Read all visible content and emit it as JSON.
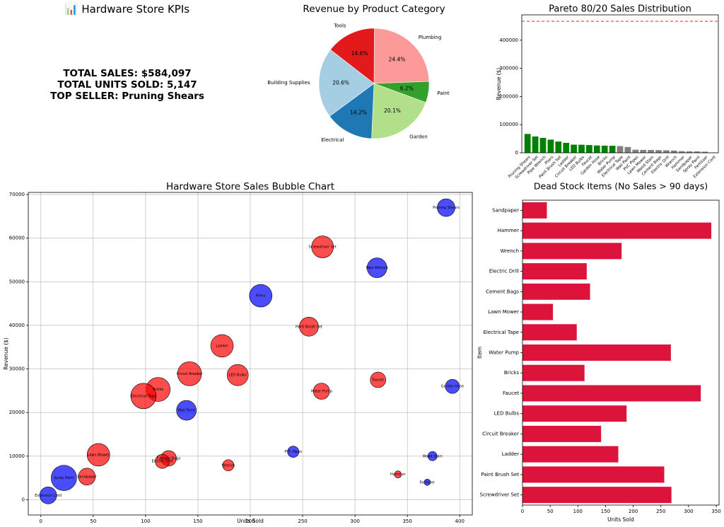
{
  "kpi": {
    "title": "📊 Hardware Store KPIs",
    "total_sales": "TOTAL SALES: $584,097",
    "total_units": "TOTAL UNITS SOLD: 5,147",
    "top_seller": "TOP SELLER: Pruning Shears"
  },
  "chart_data": [
    {
      "id": "pie",
      "type": "pie",
      "title": "Revenue by Product Category",
      "slices": [
        {
          "label": "Plumbing",
          "pct": 24.4,
          "color": "#fb9a99"
        },
        {
          "label": "Paint",
          "pct": 6.2,
          "color": "#33a02c"
        },
        {
          "label": "Garden",
          "pct": 20.1,
          "color": "#b2df8a"
        },
        {
          "label": "Electrical",
          "pct": 14.2,
          "color": "#1f78b4"
        },
        {
          "label": "Building Supplies",
          "pct": 20.6,
          "color": "#a6cee3"
        },
        {
          "label": "Tools",
          "pct": 14.6,
          "color": "#e31a1c"
        }
      ]
    },
    {
      "id": "pareto",
      "type": "bar",
      "title": "Pareto 80/20 Sales Distribution",
      "ylabel": "Revenue ($)",
      "ylim": [
        0,
        490000
      ],
      "yticks": [
        0,
        100000,
        200000,
        300000,
        400000
      ],
      "threshold": 467278,
      "categories": [
        "Pruning Shears",
        "Screwdriver Set",
        "Pipe Wrench",
        "Pliers",
        "Paint Brush Set",
        "Ladder",
        "Circuit Breaker",
        "LED Bulbs",
        "Faucet",
        "Garden Hose",
        "Bricks",
        "Water Pump",
        "Electrical Tape",
        "Wall Paint",
        "PVC Pipes",
        "Lawn Mower",
        "Wood Stain",
        "Cement Bags",
        "Electric Drill",
        "Wrench",
        "Hammer",
        "Sandpaper",
        "Spray Paint",
        "Fertilizer",
        "Extension Cord"
      ],
      "values": [
        67000,
        58000,
        53000,
        46800,
        40000,
        35300,
        28900,
        28600,
        27500,
        26000,
        25400,
        25000,
        23800,
        20500,
        11000,
        10300,
        10000,
        9500,
        8800,
        7900,
        5800,
        5300,
        5000,
        4000,
        1000
      ],
      "colors": [
        "#008000",
        "#008000",
        "#008000",
        "#008000",
        "#008000",
        "#008000",
        "#008000",
        "#008000",
        "#008000",
        "#008000",
        "#008000",
        "#008000",
        "#808080",
        "#808080",
        "#808080",
        "#808080",
        "#808080",
        "#808080",
        "#808080",
        "#808080",
        "#808080",
        "#808080",
        "#808080",
        "#808080",
        "#808080"
      ]
    },
    {
      "id": "bubble",
      "type": "scatter",
      "title": "Hardware Store Sales Bubble Chart",
      "xlabel": "Units Sold",
      "ylabel": "Revenue ($)",
      "xlim": [
        -12,
        412
      ],
      "ylim": [
        -3500,
        70500
      ],
      "xticks": [
        0,
        50,
        100,
        150,
        200,
        250,
        300,
        350,
        400
      ],
      "yticks": [
        0,
        10000,
        20000,
        30000,
        40000,
        50000,
        60000,
        70000
      ],
      "points": [
        {
          "label": "Pruning Shears",
          "x": 387,
          "y": 67000,
          "size": 12.5,
          "color": "blue"
        },
        {
          "label": "Screwdriver Set",
          "x": 269,
          "y": 58000,
          "size": 15.5,
          "color": "red"
        },
        {
          "label": "Pipe Wrench",
          "x": 321,
          "y": 53200,
          "size": 14,
          "color": "blue"
        },
        {
          "label": "Pliers",
          "x": 210,
          "y": 46800,
          "size": 16,
          "color": "blue"
        },
        {
          "label": "Paint Brush Set",
          "x": 256,
          "y": 39700,
          "size": 13.5,
          "color": "red"
        },
        {
          "label": "Ladder",
          "x": 173,
          "y": 35300,
          "size": 16,
          "color": "red"
        },
        {
          "label": "Circuit Breaker",
          "x": 142,
          "y": 28900,
          "size": 17,
          "color": "red"
        },
        {
          "label": "LED Bulbs",
          "x": 188,
          "y": 28600,
          "size": 15,
          "color": "red"
        },
        {
          "label": "Faucet",
          "x": 322,
          "y": 27500,
          "size": 11,
          "color": "red"
        },
        {
          "label": "Garden Hose",
          "x": 393,
          "y": 26000,
          "size": 10,
          "color": "blue"
        },
        {
          "label": "Bricks",
          "x": 112,
          "y": 25300,
          "size": 17,
          "color": "red"
        },
        {
          "label": "Water Pump",
          "x": 268,
          "y": 24900,
          "size": 11.5,
          "color": "red"
        },
        {
          "label": "Electrical Tape",
          "x": 98,
          "y": 23800,
          "size": 18,
          "color": "red"
        },
        {
          "label": "Wall Paint",
          "x": 139,
          "y": 20500,
          "size": 14,
          "color": "blue"
        },
        {
          "label": "PVC Pipes",
          "x": 241,
          "y": 11000,
          "size": 8,
          "color": "blue"
        },
        {
          "label": "Lawn Mower",
          "x": 55,
          "y": 10300,
          "size": 16,
          "color": "red"
        },
        {
          "label": "Wood Stain",
          "x": 374,
          "y": 10000,
          "size": 6.5,
          "color": "blue"
        },
        {
          "label": "Cement Bags",
          "x": 122,
          "y": 9500,
          "size": 11,
          "color": "red"
        },
        {
          "label": "Electric Drill",
          "x": 116,
          "y": 8800,
          "size": 10,
          "color": "red"
        },
        {
          "label": "Wrench",
          "x": 179,
          "y": 7900,
          "size": 8,
          "color": "red"
        },
        {
          "label": "Sandpaper",
          "x": 44,
          "y": 5300,
          "size": 12,
          "color": "red"
        },
        {
          "label": "Hammer",
          "x": 341,
          "y": 5800,
          "size": 5,
          "color": "red"
        },
        {
          "label": "Spray Paint",
          "x": 22,
          "y": 5000,
          "size": 18,
          "color": "blue"
        },
        {
          "label": "Fertilizer",
          "x": 369,
          "y": 4000,
          "size": 4.5,
          "color": "blue"
        },
        {
          "label": "Extension Cord",
          "x": 7,
          "y": 1000,
          "size": 12,
          "color": "blue"
        }
      ]
    },
    {
      "id": "deadstock",
      "type": "bar",
      "orientation": "horizontal",
      "title": "Dead Stock Items (No Sales > 90 days)",
      "xlabel": "Units Sold",
      "ylabel": "Item",
      "xlim": [
        0,
        355
      ],
      "xticks": [
        0,
        50,
        100,
        150,
        200,
        250,
        300,
        350
      ],
      "categories": [
        "Sandpaper",
        "Hammer",
        "Wrench",
        "Electric Drill",
        "Cement Bags",
        "Lawn Mower",
        "Electrical Tape",
        "Water Pump",
        "Bricks",
        "Faucet",
        "LED Bulbs",
        "Circuit Breaker",
        "Ladder",
        "Paint Brush Set",
        "Screwdriver Set"
      ],
      "values": [
        44,
        341,
        179,
        116,
        122,
        55,
        98,
        268,
        112,
        322,
        188,
        142,
        173,
        256,
        269
      ],
      "color": "#dc143c"
    }
  ]
}
